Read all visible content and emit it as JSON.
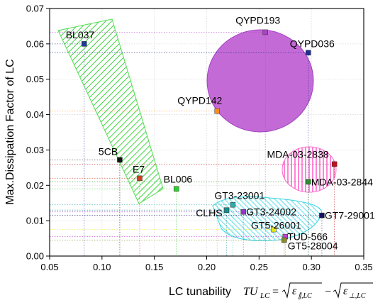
{
  "chart_data": {
    "type": "scatter",
    "xlabel": "LC tunability",
    "ylabel": "Max.Dissipation Factor of LC",
    "xlim": [
      0.05,
      0.35
    ],
    "ylim": [
      0.0,
      0.07
    ],
    "xticks": [
      "0.05",
      "0.10",
      "0.15",
      "0.20",
      "0.25",
      "0.30",
      "0.35"
    ],
    "yticks": [
      "0.00",
      "0.01",
      "0.02",
      "0.03",
      "0.04",
      "0.05",
      "0.06",
      "0.07"
    ],
    "xtick_values": [
      0.05,
      0.1,
      0.15,
      0.2,
      0.25,
      0.3,
      0.35
    ],
    "ytick_values": [
      0.0,
      0.01,
      0.02,
      0.03,
      0.04,
      0.05,
      0.06,
      0.07
    ],
    "grid": true,
    "points": [
      {
        "label": "BL037",
        "x": 0.083,
        "y": 0.06,
        "color": "#1f3a93"
      },
      {
        "label": "QYPD193",
        "x": 0.256,
        "y": 0.0633,
        "color": "#b040c8"
      },
      {
        "label": "QYPD036",
        "x": 0.297,
        "y": 0.0575,
        "color": "#1f2f8f"
      },
      {
        "label": "QYPD142",
        "x": 0.21,
        "y": 0.041,
        "color": "#ff8c1a"
      },
      {
        "label": "5CB",
        "x": 0.117,
        "y": 0.0272,
        "color": "#111111"
      },
      {
        "label": "E7",
        "x": 0.136,
        "y": 0.022,
        "color": "#d04020"
      },
      {
        "label": "BL006",
        "x": 0.171,
        "y": 0.019,
        "color": "#33cc33"
      },
      {
        "label": "MDA-03-2838",
        "x": 0.322,
        "y": 0.026,
        "color": "#c0101a"
      },
      {
        "label": "MDA-03-2844",
        "x": 0.297,
        "y": 0.021,
        "color": "#2e8b2e"
      },
      {
        "label": "GT3-23001",
        "x": 0.225,
        "y": 0.0145,
        "color": "#33aaaa"
      },
      {
        "label": "CLHS",
        "x": 0.219,
        "y": 0.013,
        "color": "#1a8a8a"
      },
      {
        "label": "GT3-24002",
        "x": 0.235,
        "y": 0.0125,
        "color": "#9933cc"
      },
      {
        "label": "GT7-29001",
        "x": 0.31,
        "y": 0.0115,
        "color": "#101060"
      },
      {
        "label": "GT5-26001",
        "x": 0.264,
        "y": 0.0075,
        "color": "#e6e61a"
      },
      {
        "label": "TUD-566",
        "x": 0.275,
        "y": 0.0055,
        "color": "#c040d0"
      },
      {
        "label": "GT5-28004",
        "x": 0.274,
        "y": 0.0045,
        "color": "#8a8a2a"
      }
    ]
  }
}
